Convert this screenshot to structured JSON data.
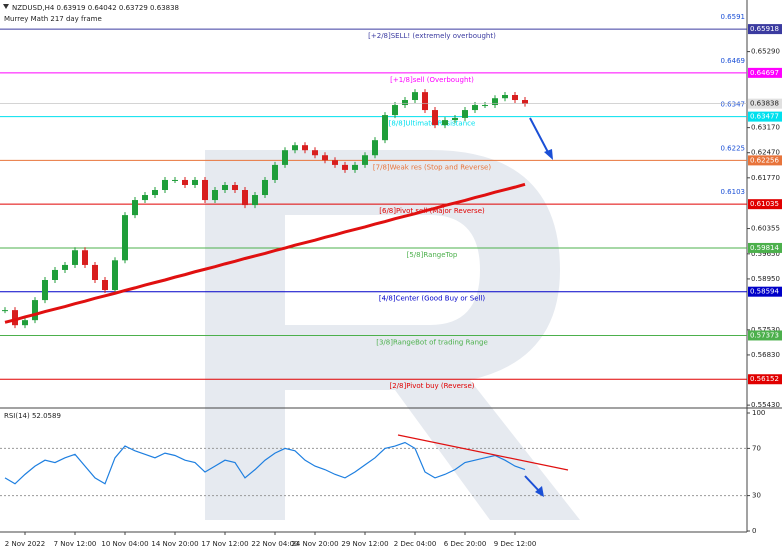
{
  "chart_data": {
    "type": "candlestick",
    "title": "NZDUSD,H4  0.63919 0.64042 0.63729 0.63838",
    "subtitle": "Murrey Math 217 day frame",
    "categories": [
      null,
      null,
      "2 Nov 2022",
      null,
      null,
      null,
      null,
      "7 Nov 12:00",
      null,
      null,
      null,
      null,
      "10 Nov 04:00",
      null,
      null,
      null,
      null,
      "14 Nov 20:00",
      null,
      null,
      null,
      null,
      "17 Nov 12:00",
      null,
      null,
      null,
      null,
      "22 Nov 04:00",
      null,
      null,
      null,
      "24 Nov 20:00",
      null,
      null,
      null,
      null,
      "29 Nov 12:00",
      null,
      null,
      null,
      null,
      "2 Dec 04:00",
      null,
      null,
      null,
      null,
      "6 Dec 20:00",
      null,
      null,
      null,
      null,
      "9 Dec 12:00",
      null
    ],
    "series": [
      {
        "values": [
          0.5808,
          0.5766,
          0.578,
          0.5836,
          0.5892,
          0.592,
          0.5934,
          0.5975,
          0.5934,
          0.5892,
          0.5864,
          0.5947,
          0.6073,
          0.6115,
          0.6129,
          0.6143,
          0.6171,
          0.6171,
          0.6157,
          0.6171,
          0.6115,
          0.6143,
          0.6157,
          0.6143,
          0.6101,
          0.6129,
          0.6171,
          0.6213,
          0.6254,
          0.6268,
          0.6254,
          0.624,
          0.6226,
          0.6213,
          0.6199,
          0.6213,
          0.624,
          0.6282,
          0.6352,
          0.638,
          0.6394,
          0.6416,
          0.6366,
          0.6324,
          0.6338,
          0.6344,
          0.6366,
          0.638,
          0.638,
          0.6399,
          0.6408,
          0.6394,
          0.63838
        ],
        "up_color": "#1f9e3a",
        "down_color": "#d81e1e"
      },
      {
        "values": [
          0.5774,
          0.5781,
          0.5789,
          0.5796,
          0.5804,
          0.5811,
          0.5818,
          0.5826,
          0.5833,
          0.5841,
          0.5848,
          0.5855,
          0.5863,
          0.587,
          0.5878,
          0.5885,
          0.5892,
          0.59,
          0.5907,
          0.5915,
          0.5922,
          0.5929,
          0.5937,
          0.5944,
          0.5952,
          0.5959,
          0.5966,
          0.5974,
          0.5981,
          0.5989,
          0.5996,
          0.6003,
          0.6011,
          0.6018,
          0.6026,
          0.6033,
          0.604,
          0.6048,
          0.6055,
          0.6063,
          0.607,
          0.6077,
          0.6085,
          0.6092,
          0.61,
          0.6107,
          0.6114,
          0.6122,
          0.6129,
          0.6137,
          0.6144,
          0.6151,
          0.6159
        ],
        "color": "#e01010"
      }
    ],
    "levels": [
      {
        "name": "[+2/8]SELL! (extremely overbought)",
        "value": 0.65918,
        "color": "#3b3ba0",
        "big_label": "0.6591"
      },
      {
        "name": "[+1/8]sell (Overbought)",
        "value": 0.64697,
        "color": "#ff00ff",
        "big_label": "0.6469"
      },
      {
        "name": "[8/8]Ultimate Resistance",
        "value": 0.63477,
        "color": "#00e0ee",
        "big_label": "0.6347"
      },
      {
        "name": "[7/8]Weak res (Stop and Reverse)",
        "value": 0.62256,
        "color": "#e8743b",
        "big_label": "0.6225"
      },
      {
        "name": "[6/8]Pivot sell (Major Reverse)",
        "value": 0.61035,
        "color": "#e00000",
        "big_label": "0.6103"
      },
      {
        "name": "[5/8]RangeTop",
        "value": 0.59814,
        "color": "#4cb04c"
      },
      {
        "name": "[4/8]Center (Good Buy or Sell)",
        "value": 0.58594,
        "color": "#0000c8"
      },
      {
        "name": "[3/8]RangeBot of trading Range",
        "value": 0.57373,
        "color": "#4cb04c"
      },
      {
        "name": "[2/8]Pivot buy (Reverse)",
        "value": 0.56152,
        "color": "#e00000"
      }
    ],
    "big_label_color": "#1a4fd6",
    "ylim": [
      0.5535,
      0.6659
    ],
    "yticks": [
      {
        "value": 0.6529,
        "label": "0.65290"
      },
      {
        "value": 0.6317,
        "label": "0.63170"
      },
      {
        "value": 0.6247,
        "label": "0.62470"
      },
      {
        "value": 0.6177,
        "label": "0.61770"
      },
      0.60355,
      {
        "value": 0.5965,
        "label": "0.59650"
      },
      {
        "value": 0.5895,
        "label": "0.58950"
      },
      {
        "value": 0.5753,
        "label": "0.57530"
      },
      {
        "value": 0.5683,
        "label": "0.56830"
      },
      {
        "value": 0.5543,
        "label": "0.55430"
      }
    ],
    "rsi": {
      "title": "RSI(14) 52.0589",
      "color": "#1e7fe0",
      "values": [
        45,
        40,
        48,
        55,
        60,
        58,
        62,
        65,
        55,
        45,
        40,
        62,
        72,
        68,
        65,
        62,
        66,
        64,
        60,
        58,
        50,
        55,
        60,
        58,
        45,
        52,
        60,
        66,
        70,
        68,
        60,
        55,
        52,
        48,
        45,
        50,
        56,
        62,
        70,
        72,
        75,
        70,
        50,
        45,
        48,
        52,
        58,
        60,
        62,
        64,
        60,
        55,
        52.0589
      ],
      "ylim": [
        0,
        100
      ],
      "yticks": [
        0,
        30,
        70,
        100
      ]
    }
  }
}
